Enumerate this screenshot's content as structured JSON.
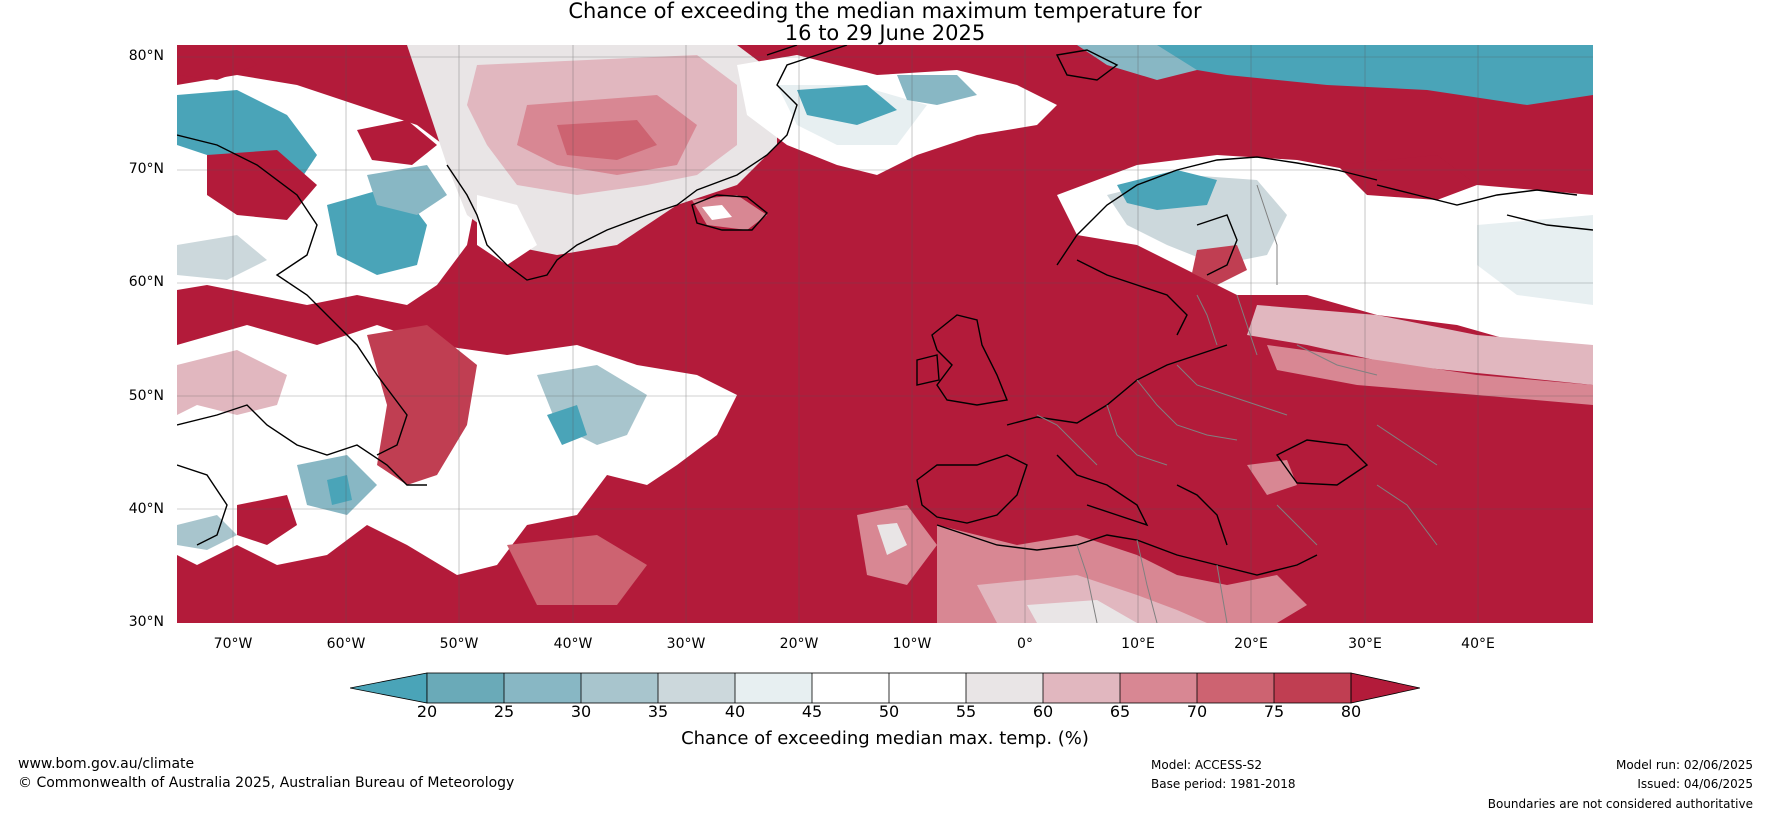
{
  "title": {
    "line1": "Chance of exceeding the median maximum temperature for",
    "line2": "16 to 29 June 2025"
  },
  "map": {
    "lat_labels": [
      "80°N",
      "70°N",
      "60°N",
      "50°N",
      "40°N",
      "30°N"
    ],
    "lon_labels": [
      "70°W",
      "60°W",
      "50°W",
      "40°W",
      "30°W",
      "20°W",
      "10°W",
      "0°",
      "10°E",
      "20°E",
      "30°E",
      "40°E"
    ],
    "palette": {
      "lt20": "#4aa4b8",
      "20_25": "#6aaab8",
      "25_30": "#88b7c4",
      "30_35": "#a8c5cd",
      "35_40": "#ccd8dc",
      "40_45": "#e7eff1",
      "45_55": "#ffffff",
      "55_60": "#e9e5e6",
      "60_65": "#e1b7bf",
      "65_70": "#d88793",
      "70_75": "#cd6371",
      "75_80": "#c03e52",
      "gt80": "#b31b3a"
    },
    "coastline_color": "#000000",
    "border_color": "#808080"
  },
  "colorbar": {
    "ticks": [
      "20",
      "25",
      "30",
      "35",
      "40",
      "45",
      "50",
      "55",
      "60",
      "65",
      "70",
      "75",
      "80"
    ],
    "label": "Chance of exceeding median max. temp. (%)"
  },
  "footer": {
    "website": "www.bom.gov.au/climate",
    "copyright": "© Commonwealth of Australia 2025, Australian Bureau of Meteorology",
    "model": "Model: ACCESS-S2",
    "base_period": "Base period: 1981-2018",
    "model_run": "Model run: 02/06/2025",
    "issued": "Issued: 04/06/2025",
    "disclaimer": "Boundaries are not considered authoritative"
  }
}
